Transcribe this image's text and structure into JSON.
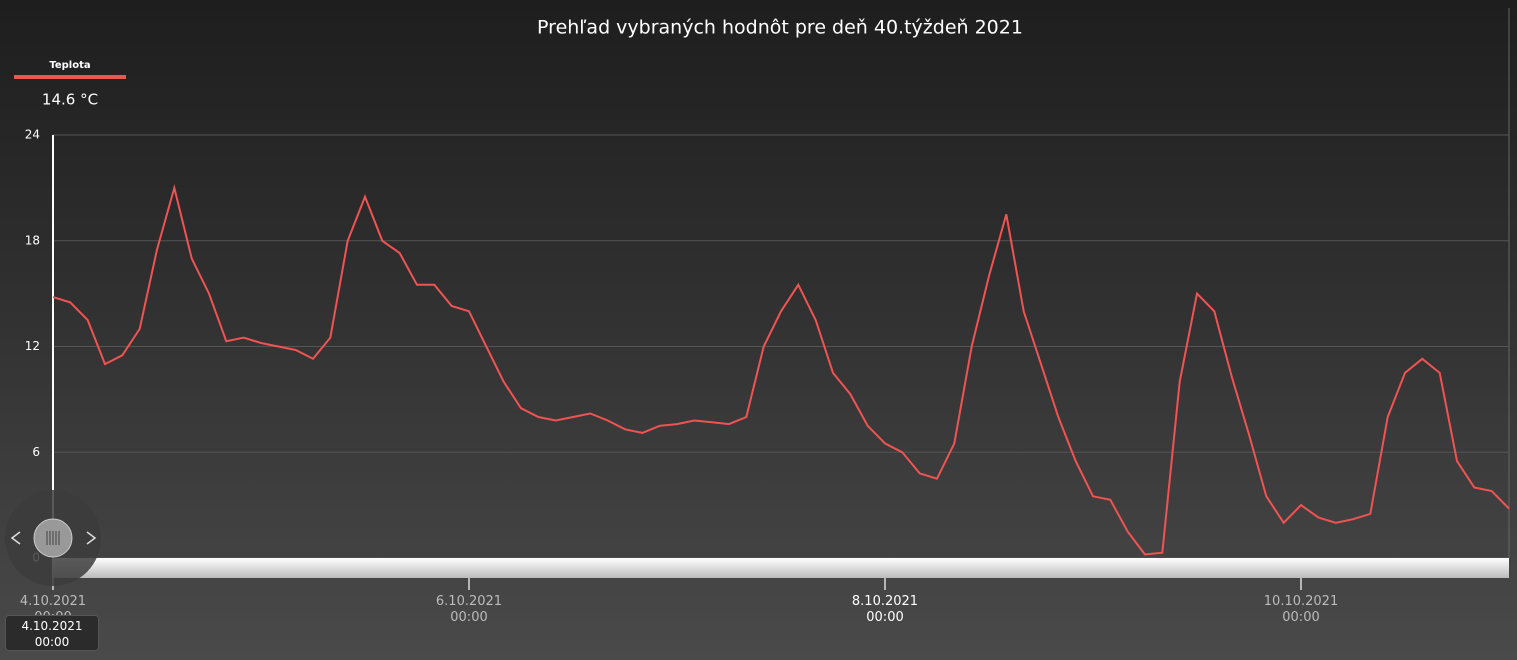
{
  "chart_data": {
    "type": "line",
    "title": "Prehľad vybraných hodnôt pre deň 40.týždeň 2021",
    "series": [
      {
        "name": "Teplota",
        "color": "#f05353",
        "current": "14.6 °C",
        "values": [
          14.8,
          14.5,
          13.5,
          11,
          11.5,
          13,
          17.5,
          21,
          17,
          15,
          12.3,
          12.5,
          12.2,
          12,
          11.8,
          11.3,
          12.5,
          18,
          20.5,
          18,
          17.3,
          15.5,
          15.5,
          14.3,
          14,
          12,
          10,
          8.5,
          8,
          7.8,
          8,
          8.2,
          7.8,
          7.3,
          7.1,
          7.5,
          7.6,
          7.8,
          7.7,
          7.6,
          8,
          12,
          14,
          15.5,
          13.5,
          10.5,
          9.3,
          7.5,
          6.5,
          6,
          4.8,
          4.5,
          6.5,
          12,
          16,
          19.5,
          14,
          11,
          8,
          5.5,
          3.5,
          3.3,
          1.5,
          0.2,
          0.3,
          10,
          15,
          14,
          10.3,
          7,
          3.5,
          2,
          3,
          2.3,
          2,
          2.2,
          2.5,
          8,
          10.5,
          11.3,
          10.5,
          5.5,
          4,
          3.8,
          2.8
        ]
      }
    ],
    "x": [
      "4.10.2021 00:00",
      "4.10.2021 02:00",
      "4.10.2021 04:00",
      "4.10.2021 06:00",
      "4.10.2021 08:00",
      "4.10.2021 10:00",
      "4.10.2021 12:00",
      "4.10.2021 14:00",
      "4.10.2021 16:00",
      "4.10.2021 18:00",
      "4.10.2021 20:00",
      "4.10.2021 22:00",
      "5.10.2021 00:00",
      "5.10.2021 02:00",
      "5.10.2021 04:00",
      "5.10.2021 06:00",
      "5.10.2021 08:00",
      "5.10.2021 10:00",
      "5.10.2021 12:00",
      "5.10.2021 14:00",
      "5.10.2021 16:00",
      "5.10.2021 18:00",
      "5.10.2021 20:00",
      "5.10.2021 22:00",
      "6.10.2021 00:00",
      "6.10.2021 02:00",
      "6.10.2021 04:00",
      "6.10.2021 06:00",
      "6.10.2021 08:00",
      "6.10.2021 10:00",
      "6.10.2021 12:00",
      "6.10.2021 14:00",
      "6.10.2021 16:00",
      "6.10.2021 18:00",
      "6.10.2021 20:00",
      "6.10.2021 22:00",
      "7.10.2021 00:00",
      "7.10.2021 02:00",
      "7.10.2021 04:00",
      "7.10.2021 06:00",
      "7.10.2021 08:00",
      "7.10.2021 10:00",
      "7.10.2021 12:00",
      "7.10.2021 14:00",
      "7.10.2021 16:00",
      "7.10.2021 18:00",
      "7.10.2021 20:00",
      "7.10.2021 22:00",
      "8.10.2021 00:00",
      "8.10.2021 02:00",
      "8.10.2021 04:00",
      "8.10.2021 06:00",
      "8.10.2021 08:00",
      "8.10.2021 10:00",
      "8.10.2021 12:00",
      "8.10.2021 14:00",
      "8.10.2021 16:00",
      "8.10.2021 18:00",
      "8.10.2021 20:00",
      "8.10.2021 22:00",
      "9.10.2021 00:00",
      "9.10.2021 02:00",
      "9.10.2021 04:00",
      "9.10.2021 06:00",
      "9.10.2021 08:00",
      "9.10.2021 10:00",
      "9.10.2021 12:00",
      "9.10.2021 14:00",
      "9.10.2021 16:00",
      "9.10.2021 18:00",
      "9.10.2021 20:00",
      "9.10.2021 22:00",
      "10.10.2021 00:00",
      "10.10.2021 02:00",
      "10.10.2021 04:00",
      "10.10.2021 06:00",
      "10.10.2021 08:00",
      "10.10.2021 10:00",
      "10.10.2021 12:00",
      "10.10.2021 14:00",
      "10.10.2021 16:00",
      "10.10.2021 18:00",
      "10.10.2021 20:00",
      "10.10.2021 22:00",
      "11.10.2021 00:00"
    ],
    "xlim": [
      "4.10.2021 00:00",
      "11.10.2021 00:00"
    ],
    "xticks": [
      "4.10.2021 00:00",
      "6.10.2021 00:00",
      "8.10.2021 00:00",
      "10.10.2021 00:00"
    ],
    "ylim": [
      0,
      24
    ],
    "yticks": [
      0,
      6,
      12,
      18,
      24
    ],
    "grid": true
  }
}
